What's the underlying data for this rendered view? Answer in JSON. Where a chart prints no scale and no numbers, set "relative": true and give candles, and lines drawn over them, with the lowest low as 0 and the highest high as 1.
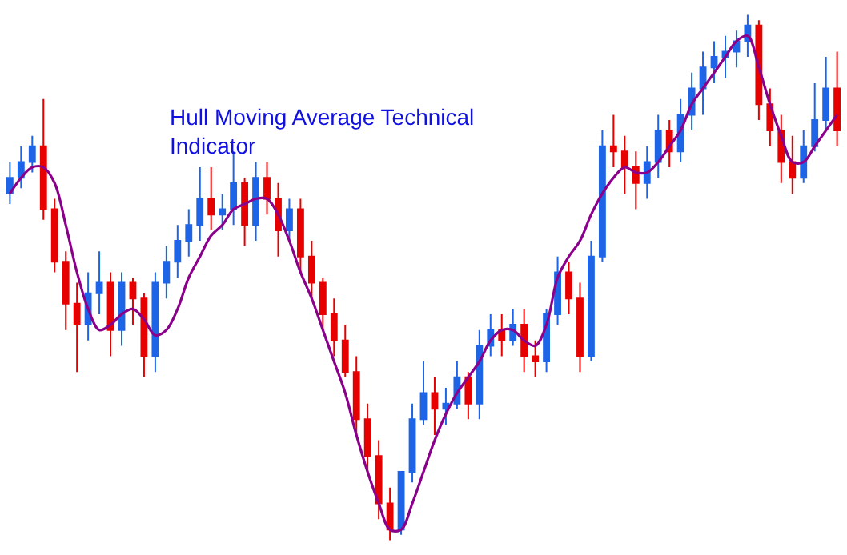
{
  "chart_data": {
    "type": "candlestick",
    "title": "Hull Moving Average Technical Indicator",
    "relative": true,
    "legend": false,
    "categories": [
      null,
      null,
      null,
      null,
      null,
      null,
      null,
      null,
      null,
      null,
      null,
      null,
      null,
      null,
      null,
      null,
      null,
      null,
      null,
      null,
      null,
      null,
      null,
      null,
      null,
      null,
      null,
      null,
      null,
      null,
      null,
      null,
      null,
      null,
      null,
      null,
      null,
      null,
      null,
      null,
      null,
      null,
      null,
      null,
      null,
      null,
      null,
      null,
      null,
      null,
      null,
      null,
      null,
      null,
      null,
      null,
      null,
      null,
      null,
      null,
      null,
      null,
      null,
      null,
      null,
      null,
      null,
      null,
      null,
      null,
      null,
      null,
      null,
      null,
      null
    ],
    "ohlc": [
      [
        0.66,
        0.72,
        0.64,
        0.69
      ],
      [
        0.69,
        0.75,
        0.67,
        0.72
      ],
      [
        0.72,
        0.77,
        0.7,
        0.75
      ],
      [
        0.75,
        0.84,
        0.61,
        0.63
      ],
      [
        0.63,
        0.65,
        0.51,
        0.53
      ],
      [
        0.53,
        0.55,
        0.4,
        0.45
      ],
      [
        0.45,
        0.49,
        0.32,
        0.41
      ],
      [
        0.41,
        0.51,
        0.38,
        0.47
      ],
      [
        0.47,
        0.55,
        0.43,
        0.49
      ],
      [
        0.49,
        0.51,
        0.35,
        0.4
      ],
      [
        0.4,
        0.51,
        0.37,
        0.49
      ],
      [
        0.49,
        0.5,
        0.41,
        0.46
      ],
      [
        0.46,
        0.47,
        0.31,
        0.35
      ],
      [
        0.35,
        0.51,
        0.32,
        0.49
      ],
      [
        0.49,
        0.56,
        0.46,
        0.53
      ],
      [
        0.53,
        0.6,
        0.5,
        0.57
      ],
      [
        0.57,
        0.63,
        0.54,
        0.6
      ],
      [
        0.6,
        0.71,
        0.57,
        0.65
      ],
      [
        0.65,
        0.71,
        0.59,
        0.62
      ],
      [
        0.62,
        0.66,
        0.59,
        0.63
      ],
      [
        0.63,
        0.74,
        0.6,
        0.68
      ],
      [
        0.68,
        0.69,
        0.56,
        0.6
      ],
      [
        0.6,
        0.72,
        0.57,
        0.69
      ],
      [
        0.69,
        0.72,
        0.62,
        0.65
      ],
      [
        0.65,
        0.68,
        0.54,
        0.59
      ],
      [
        0.59,
        0.65,
        0.57,
        0.63
      ],
      [
        0.63,
        0.65,
        0.51,
        0.54
      ],
      [
        0.54,
        0.57,
        0.46,
        0.49
      ],
      [
        0.49,
        0.5,
        0.4,
        0.43
      ],
      [
        0.43,
        0.46,
        0.35,
        0.38
      ],
      [
        0.38,
        0.41,
        0.31,
        0.32
      ],
      [
        0.32,
        0.35,
        0.2,
        0.23
      ],
      [
        0.23,
        0.26,
        0.13,
        0.16
      ],
      [
        0.16,
        0.19,
        0.04,
        0.07
      ],
      [
        0.07,
        0.1,
        0,
        0.02
      ],
      [
        0.02,
        0.13,
        0.01,
        0.13
      ],
      [
        0.13,
        0.26,
        0.11,
        0.23
      ],
      [
        0.23,
        0.34,
        0.22,
        0.28
      ],
      [
        0.28,
        0.31,
        0.2,
        0.25
      ],
      [
        0.25,
        0.29,
        0.22,
        0.26
      ],
      [
        0.26,
        0.34,
        0.25,
        0.31
      ],
      [
        0.31,
        0.32,
        0.23,
        0.26
      ],
      [
        0.26,
        0.4,
        0.23,
        0.37
      ],
      [
        0.37,
        0.43,
        0.35,
        0.4
      ],
      [
        0.4,
        0.43,
        0.35,
        0.38
      ],
      [
        0.38,
        0.44,
        0.37,
        0.41
      ],
      [
        0.41,
        0.44,
        0.32,
        0.35
      ],
      [
        0.35,
        0.38,
        0.31,
        0.34
      ],
      [
        0.34,
        0.44,
        0.32,
        0.43
      ],
      [
        0.43,
        0.54,
        0.41,
        0.51
      ],
      [
        0.51,
        0.53,
        0.43,
        0.46
      ],
      [
        0.46,
        0.49,
        0.32,
        0.35
      ],
      [
        0.35,
        0.57,
        0.34,
        0.54
      ],
      [
        0.54,
        0.78,
        0.53,
        0.75
      ],
      [
        0.75,
        0.81,
        0.71,
        0.74
      ],
      [
        0.74,
        0.77,
        0.66,
        0.71
      ],
      [
        0.71,
        0.74,
        0.63,
        0.68
      ],
      [
        0.68,
        0.75,
        0.65,
        0.72
      ],
      [
        0.72,
        0.81,
        0.69,
        0.78
      ],
      [
        0.78,
        0.8,
        0.71,
        0.74
      ],
      [
        0.74,
        0.84,
        0.72,
        0.81
      ],
      [
        0.81,
        0.89,
        0.78,
        0.86
      ],
      [
        0.86,
        0.93,
        0.81,
        0.9
      ],
      [
        0.9,
        0.95,
        0.87,
        0.92
      ],
      [
        0.92,
        0.96,
        0.88,
        0.93
      ],
      [
        0.93,
        0.97,
        0.9,
        0.95
      ],
      [
        0.95,
        1,
        0.92,
        0.98
      ],
      [
        0.98,
        0.99,
        0.8,
        0.83
      ],
      [
        0.83,
        0.86,
        0.75,
        0.78
      ],
      [
        0.78,
        0.81,
        0.68,
        0.72
      ],
      [
        0.72,
        0.77,
        0.66,
        0.69
      ],
      [
        0.69,
        0.78,
        0.68,
        0.75
      ],
      [
        0.75,
        0.87,
        0.74,
        0.8
      ],
      [
        0.8,
        0.92,
        0.78,
        0.86
      ],
      [
        0.86,
        0.93,
        0.75,
        0.78
      ]
    ],
    "colors": [
      "#1e64e6",
      "#1e64e6",
      "#1e64e6",
      "#e60000",
      "#e60000",
      "#e60000",
      "#e60000",
      "#1e64e6",
      "#1e64e6",
      "#e60000",
      "#1e64e6",
      "#e60000",
      "#e60000",
      "#1e64e6",
      "#1e64e6",
      "#1e64e6",
      "#1e64e6",
      "#1e64e6",
      "#e60000",
      "#1e64e6",
      "#1e64e6",
      "#e60000",
      "#1e64e6",
      "#e60000",
      "#e60000",
      "#1e64e6",
      "#e60000",
      "#e60000",
      "#e60000",
      "#e60000",
      "#e60000",
      "#e60000",
      "#e60000",
      "#e60000",
      "#e60000",
      "#1e64e6",
      "#1e64e6",
      "#1e64e6",
      "#e60000",
      "#1e64e6",
      "#1e64e6",
      "#e60000",
      "#1e64e6",
      "#1e64e6",
      "#e60000",
      "#1e64e6",
      "#e60000",
      "#e60000",
      "#1e64e6",
      "#1e64e6",
      "#e60000",
      "#e60000",
      "#1e64e6",
      "#1e64e6",
      "#e60000",
      "#e60000",
      "#e60000",
      "#1e64e6",
      "#1e64e6",
      "#e60000",
      "#1e64e6",
      "#1e64e6",
      "#1e64e6",
      "#1e64e6",
      "#1e64e6",
      "#1e64e6",
      "#1e64e6",
      "#e60000",
      "#e60000",
      "#e60000",
      "#e60000",
      "#1e64e6",
      "#1e64e6",
      "#1e64e6",
      "#e60000"
    ],
    "series": [
      {
        "type": "line",
        "color": "#8b008b",
        "values": [
          0.66,
          0.69,
          0.71,
          0.71,
          0.68,
          0.6,
          0.51,
          0.44,
          0.4,
          0.41,
          0.43,
          0.44,
          0.42,
          0.39,
          0.4,
          0.44,
          0.5,
          0.54,
          0.58,
          0.6,
          0.63,
          0.64,
          0.65,
          0.65,
          0.62,
          0.57,
          0.51,
          0.46,
          0.4,
          0.34,
          0.28,
          0.2,
          0.13,
          0.07,
          0.02,
          0.02,
          0.07,
          0.13,
          0.19,
          0.24,
          0.28,
          0.31,
          0.34,
          0.38,
          0.4,
          0.4,
          0.38,
          0.37,
          0.41,
          0.5,
          0.54,
          0.57,
          0.62,
          0.66,
          0.69,
          0.71,
          0.7,
          0.7,
          0.72,
          0.75,
          0.78,
          0.83,
          0.86,
          0.89,
          0.92,
          0.95,
          0.96,
          0.9,
          0.83,
          0.77,
          0.72,
          0.72,
          0.75,
          0.78,
          0.81
        ]
      }
    ]
  }
}
